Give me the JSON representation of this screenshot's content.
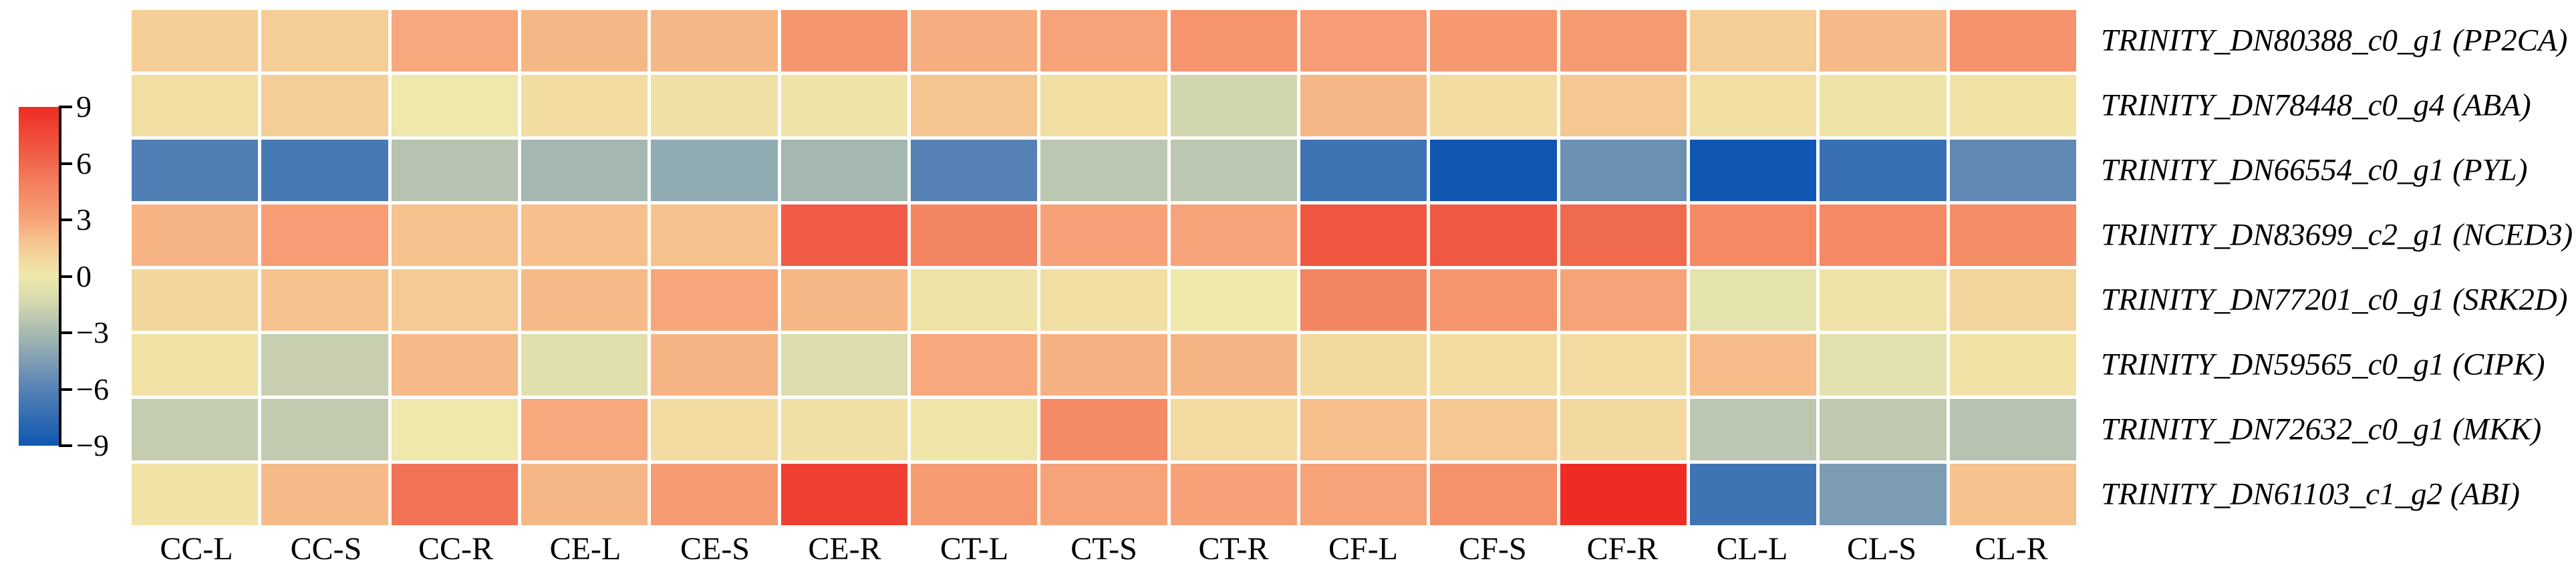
{
  "figure": {
    "background_color": "#ffffff",
    "text_color": "#000000"
  },
  "chart_data": {
    "type": "heatmap",
    "title": "",
    "xlabel": "",
    "ylabel": "",
    "grid_gap_color": "#ffffff",
    "legend_position": "left",
    "columns": [
      "CC-L",
      "CC-S",
      "CC-R",
      "CE-L",
      "CE-S",
      "CE-R",
      "CT-L",
      "CT-S",
      "CT-R",
      "CF-L",
      "CF-S",
      "CF-R",
      "CL-L",
      "CL-S",
      "CL-R"
    ],
    "rows": [
      "TRINITY_DN80388_c0_g1 (PP2CA)",
      "TRINITY_DN78448_c0_g4 (ABA)",
      "TRINITY_DN66554_c0_g1 (PYL)",
      "TRINITY_DN83699_c2_g1 (NCED3)",
      "TRINITY_DN77201_c0_g1 (SRK2D)",
      "TRINITY_DN59565_c0_g1 (CIPK)",
      "TRINITY_DN72632_c0_g1 (MKK)",
      "TRINITY_DN61103_c1_g2 (ABI)"
    ],
    "values": [
      [
        1.4,
        1.5,
        2.8,
        2.3,
        2.3,
        3.7,
        2.6,
        3.0,
        3.8,
        3.3,
        3.6,
        3.5,
        1.5,
        2.2,
        3.9
      ],
      [
        0.6,
        1.5,
        0.1,
        0.7,
        0.5,
        0.3,
        1.8,
        0.6,
        -1.5,
        2.3,
        0.7,
        1.7,
        0.6,
        0.3,
        0.4
      ],
      [
        -6.2,
        -6.6,
        -2.5,
        -3.1,
        -3.8,
        -3.1,
        -6.0,
        -2.3,
        -2.3,
        -7.0,
        -9.0,
        -5.2,
        -9.0,
        -7.2,
        -5.6
      ],
      [
        2.4,
        3.3,
        1.9,
        2.0,
        1.9,
        6.6,
        4.6,
        3.1,
        3.0,
        6.9,
        6.8,
        5.9,
        4.4,
        4.4,
        4.2
      ],
      [
        1.0,
        1.9,
        1.6,
        2.2,
        2.9,
        2.3,
        0.3,
        0.6,
        0.0,
        4.6,
        3.8,
        3.0,
        -0.5,
        0.3,
        1.1
      ],
      [
        0.4,
        -1.9,
        2.2,
        -0.7,
        2.4,
        -1.0,
        2.8,
        2.5,
        2.4,
        0.9,
        0.7,
        0.7,
        2.1,
        -0.6,
        0.4
      ],
      [
        -2.0,
        -2.1,
        0.1,
        2.8,
        0.7,
        0.5,
        0.2,
        4.3,
        0.8,
        2.0,
        1.7,
        0.9,
        -2.3,
        -2.2,
        -2.5
      ],
      [
        0.4,
        2.2,
        5.5,
        2.3,
        3.4,
        8.0,
        3.5,
        3.0,
        3.1,
        3.0,
        3.9,
        9.0,
        -7.0,
        -4.6,
        1.9
      ]
    ],
    "value_domain": [
      -9,
      9
    ],
    "colorbar": {
      "ticks": [
        9,
        6,
        3,
        0,
        -3,
        -6,
        -9
      ],
      "tick_labels": [
        "9",
        "6",
        "3",
        "0",
        "−3",
        "−6",
        "−9"
      ]
    },
    "colormap": {
      "name": "blue-yellow-red (RdYlBu reversed)",
      "anchors": [
        {
          "value": -9,
          "color": "#0f57b2"
        },
        {
          "value": -7.5,
          "color": "#326cb3"
        },
        {
          "value": -6,
          "color": "#5581b5"
        },
        {
          "value": -4.5,
          "color": "#7e9eb3"
        },
        {
          "value": -3,
          "color": "#a7bab1"
        },
        {
          "value": -1.5,
          "color": "#d2d6af"
        },
        {
          "value": 0,
          "color": "#efe9ac"
        },
        {
          "value": 1.5,
          "color": "#f5cd96"
        },
        {
          "value": 3,
          "color": "#f7a379"
        },
        {
          "value": 4.5,
          "color": "#f48763"
        },
        {
          "value": 6,
          "color": "#f0684d"
        },
        {
          "value": 7.5,
          "color": "#ef4a38"
        },
        {
          "value": 9,
          "color": "#ee2c23"
        }
      ]
    }
  }
}
